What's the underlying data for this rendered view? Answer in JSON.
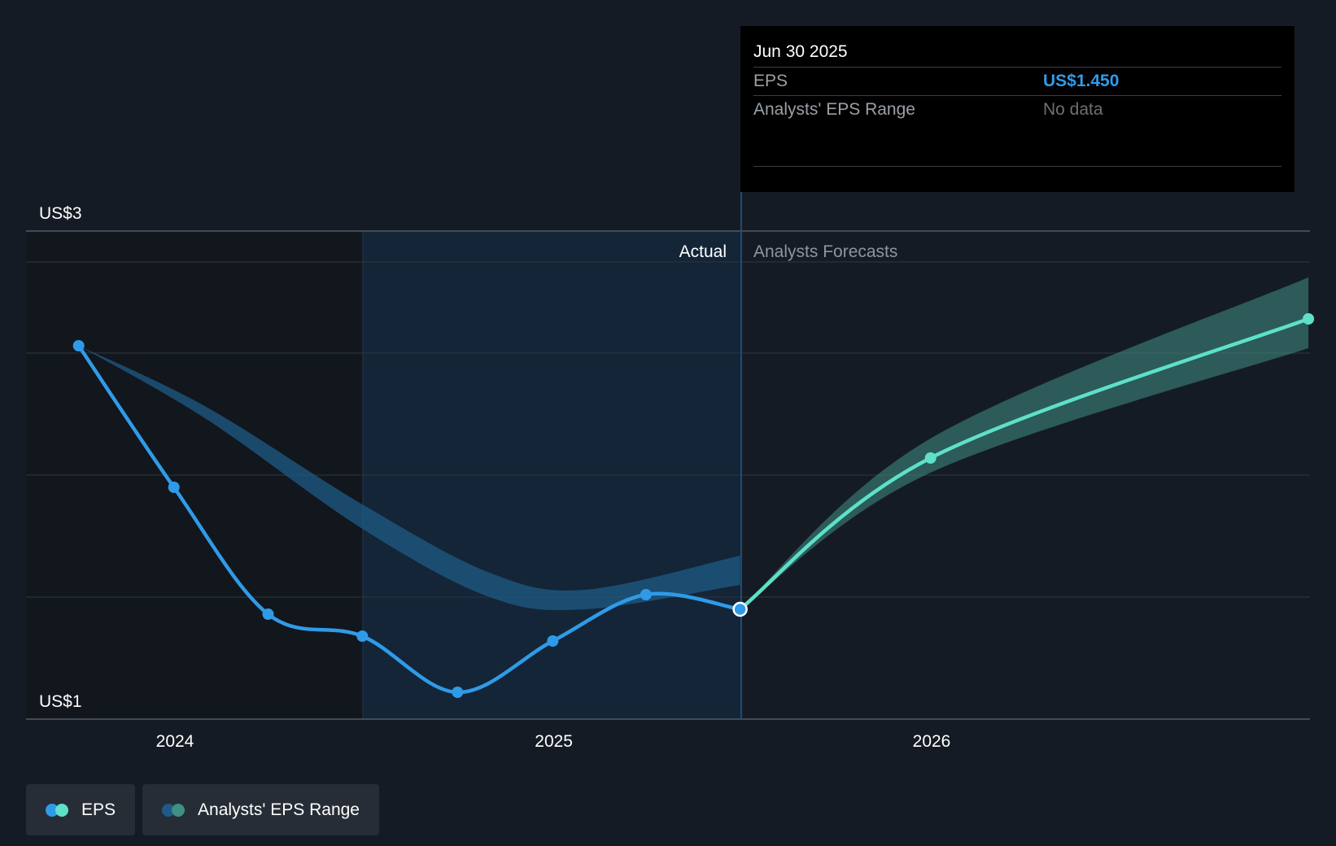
{
  "tooltip": {
    "date": "Jun 30 2025",
    "rows": [
      {
        "label": "EPS",
        "value": "US$1.450"
      },
      {
        "label": "Analysts' EPS Range",
        "value": "No data"
      }
    ]
  },
  "legend": [
    {
      "label": "EPS",
      "colors": [
        "#2f9be8",
        "#5ee0c9"
      ]
    },
    {
      "label": "Analysts' EPS Range",
      "colors": [
        "#1f5b86",
        "#3f8f85"
      ]
    }
  ],
  "chart_data": {
    "type": "line",
    "y_axis_labels": [
      {
        "value": 3,
        "label": "US$3"
      },
      {
        "value": 1,
        "label": "US$1"
      }
    ],
    "ylim": [
      1,
      3
    ],
    "x_ticks": [
      {
        "x": "2024-01-01",
        "label": "2024"
      },
      {
        "x": "2025-01-01",
        "label": "2025"
      },
      {
        "x": "2026-01-01",
        "label": "2026"
      }
    ],
    "section_labels": {
      "actual": "Actual",
      "forecast": "Analysts Forecasts"
    },
    "colors": {
      "actual": "#2f9be8",
      "forecast": "#5ee0c9",
      "actual_band": "#1f5b86",
      "forecast_band": "#3f8f85"
    },
    "series": [
      {
        "name": "EPS",
        "points": [
          {
            "x": "2023-09-30",
            "y": 2.53
          },
          {
            "x": "2023-12-31",
            "y": 1.95
          },
          {
            "x": "2024-03-31",
            "y": 1.43
          },
          {
            "x": "2024-06-30",
            "y": 1.34
          },
          {
            "x": "2024-09-30",
            "y": 1.11
          },
          {
            "x": "2024-12-31",
            "y": 1.32
          },
          {
            "x": "2025-03-31",
            "y": 1.51
          },
          {
            "x": "2025-06-30",
            "y": 1.45
          }
        ]
      },
      {
        "name": "EPS forecast",
        "points": [
          {
            "x": "2025-06-30",
            "y": 1.45
          },
          {
            "x": "2025-12-31",
            "y": 2.07
          },
          {
            "x": "2026-12-31",
            "y": 2.64
          }
        ]
      }
    ],
    "bands": [
      {
        "name": "Analysts' EPS Range (past)",
        "points": [
          {
            "x": "2023-09-30",
            "low": 2.53,
            "high": 2.53
          },
          {
            "x": "2024-01-31",
            "low": 2.23,
            "high": 2.28
          },
          {
            "x": "2024-06-30",
            "low": 1.78,
            "high": 1.88
          },
          {
            "x": "2024-10-31",
            "low": 1.5,
            "high": 1.6
          },
          {
            "x": "2025-01-31",
            "low": 1.45,
            "high": 1.53
          },
          {
            "x": "2025-06-30",
            "low": 1.55,
            "high": 1.67
          }
        ]
      },
      {
        "name": "Analysts' EPS Range (forecast)",
        "points": [
          {
            "x": "2025-06-30",
            "low": 1.45,
            "high": 1.45
          },
          {
            "x": "2025-12-31",
            "low": 2.01,
            "high": 2.15
          },
          {
            "x": "2026-12-31",
            "low": 2.52,
            "high": 2.81
          }
        ]
      }
    ]
  }
}
